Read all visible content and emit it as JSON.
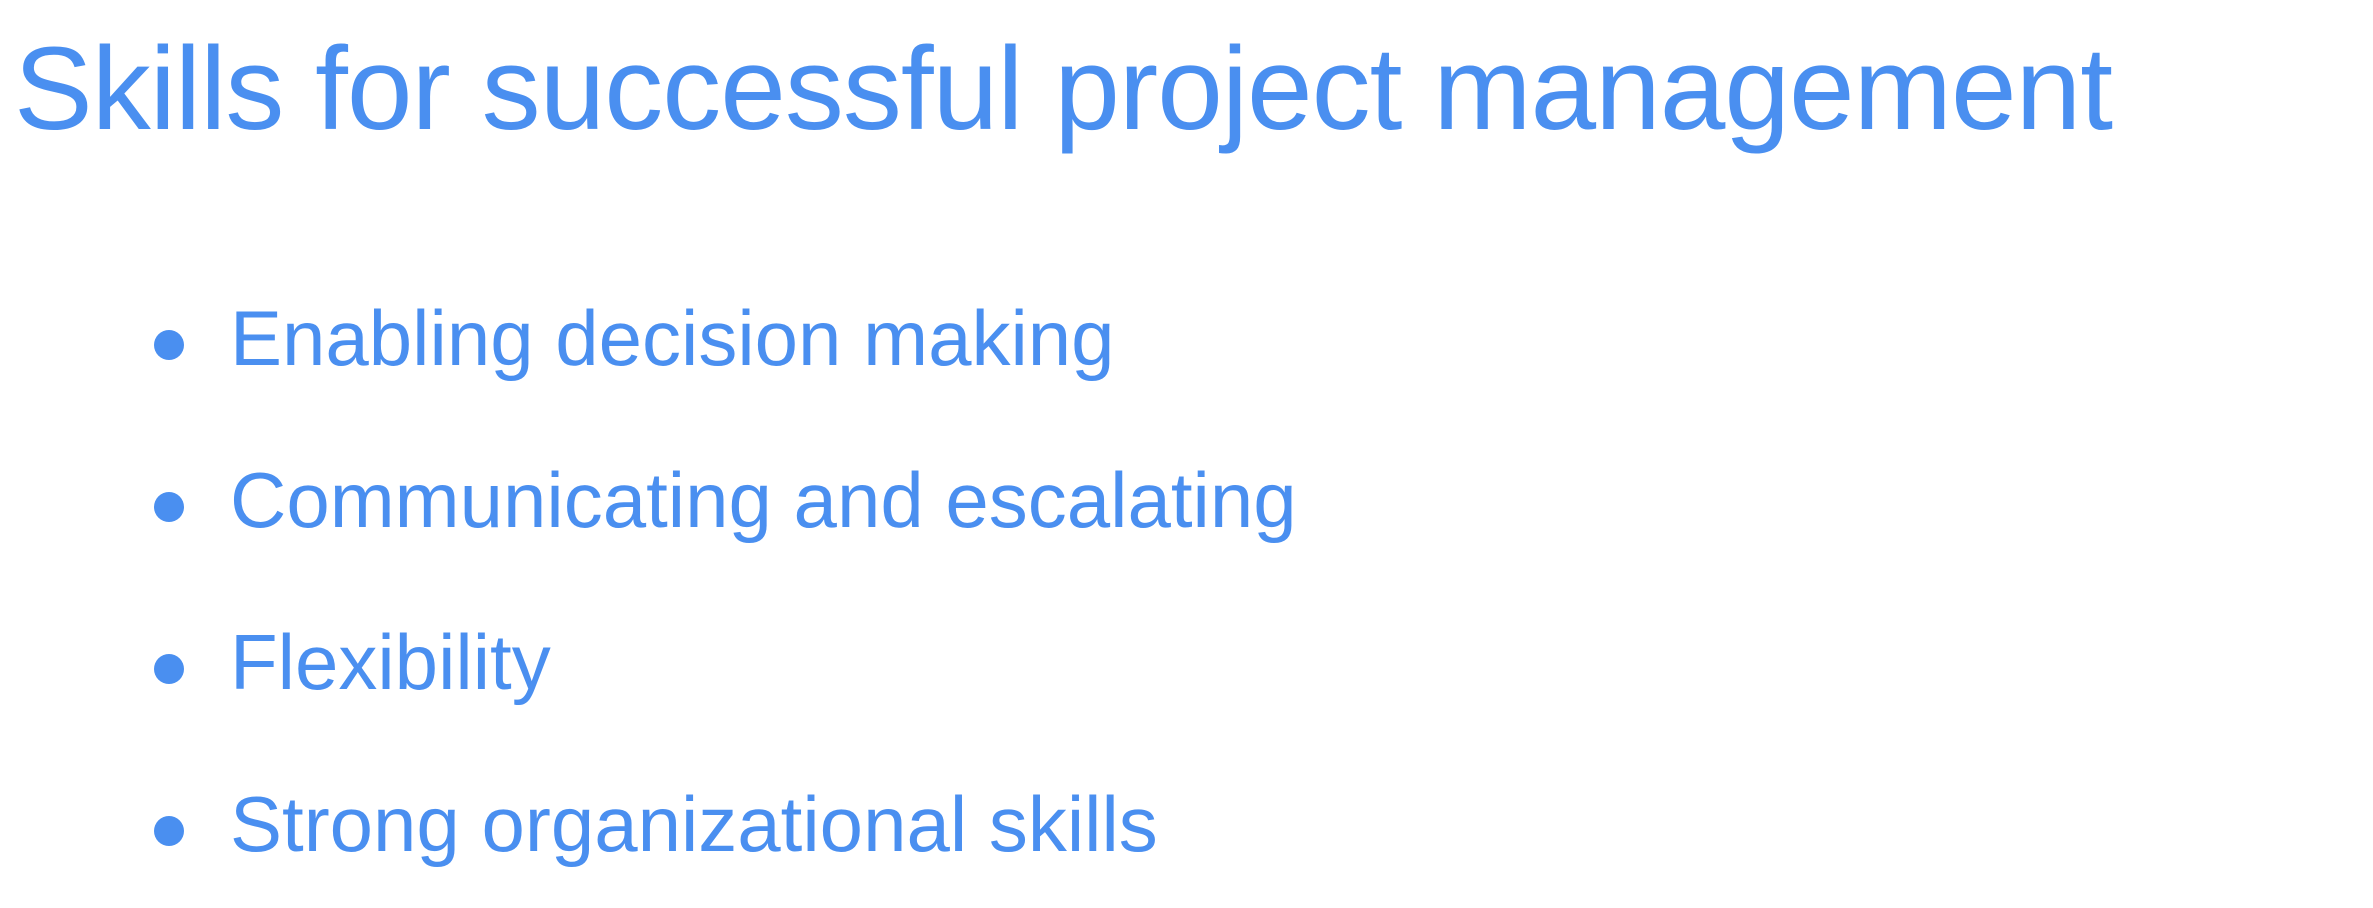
{
  "slide": {
    "title": "Skills for successful project management",
    "bullets": [
      "Enabling decision making",
      "Communicating and escalating",
      "Flexibility",
      "Strong organizational skills"
    ],
    "colors": {
      "text": "#4a8ff0",
      "background": "#ffffff"
    }
  }
}
